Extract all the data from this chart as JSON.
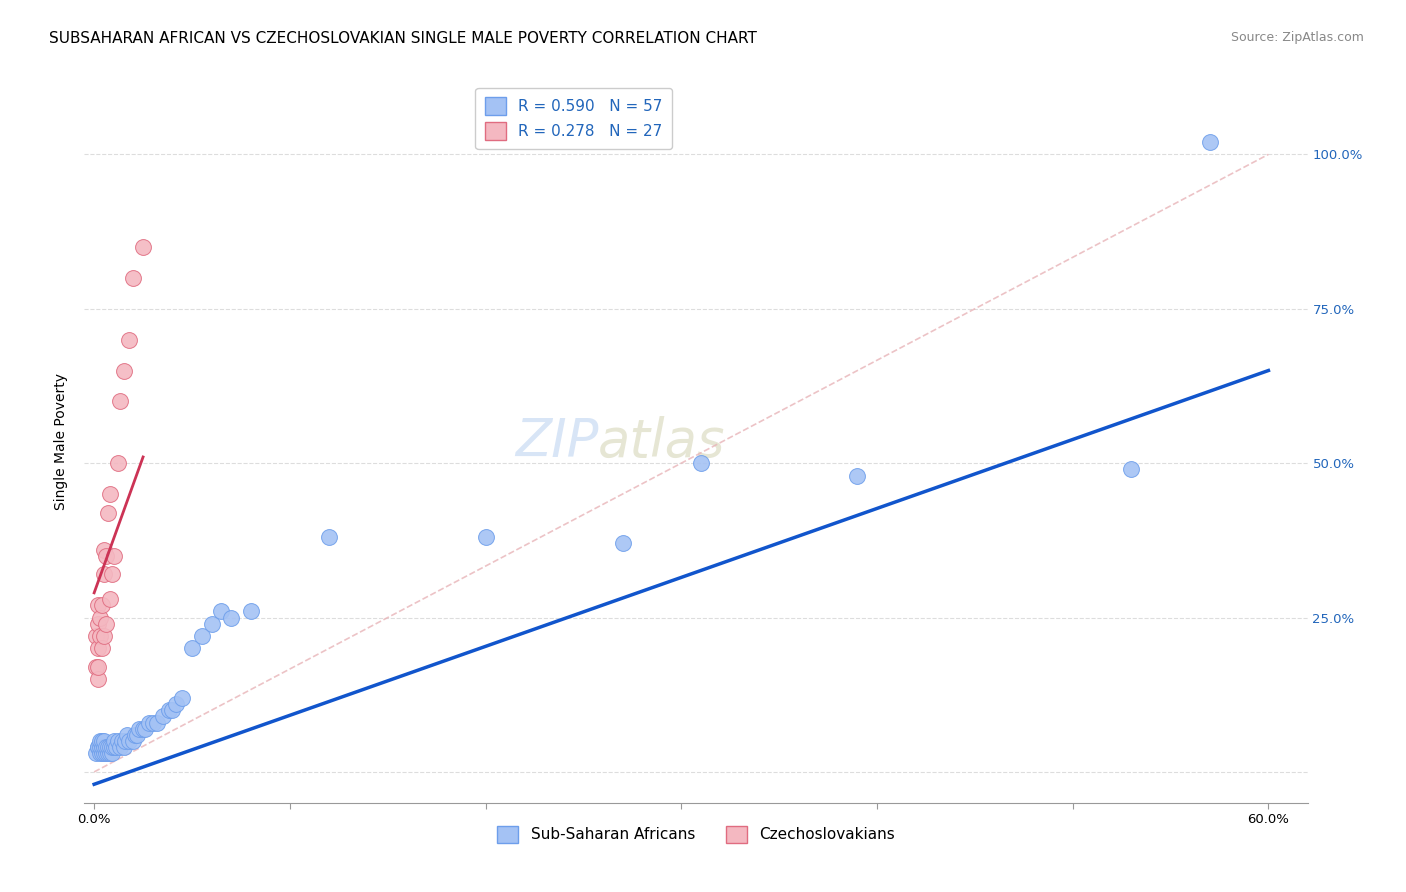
{
  "title": "SUBSAHARAN AFRICAN VS CZECHOSLOVAKIAN SINGLE MALE POVERTY CORRELATION CHART",
  "source": "Source: ZipAtlas.com",
  "ylabel": "Single Male Poverty",
  "xlim": [
    -0.005,
    0.62
  ],
  "ylim": [
    -0.05,
    1.12
  ],
  "xticks": [
    0.0,
    0.1,
    0.2,
    0.3,
    0.4,
    0.5,
    0.6
  ],
  "xticklabels": [
    "0.0%",
    "",
    "",
    "",
    "",
    "",
    "60.0%"
  ],
  "ytick_positions": [
    0.0,
    0.25,
    0.5,
    0.75,
    1.0
  ],
  "ytick_labels_right": [
    "",
    "25.0%",
    "50.0%",
    "75.0%",
    "100.0%"
  ],
  "blue_color": "#a4c2f4",
  "pink_color": "#f4b8c1",
  "blue_edge": "#6d9eeb",
  "pink_edge": "#e06c80",
  "blue_line_color": "#1155cc",
  "pink_line_color": "#cc3355",
  "diag_line_color": "#cccccc",
  "legend_r1": "R = 0.590   N = 57",
  "legend_r2": "R = 0.278   N = 27",
  "legend_label1": "Sub-Saharan Africans",
  "legend_label2": "Czechoslovakians",
  "watermark_zip": "ZIP",
  "watermark_atlas": "atlas",
  "blue_scatter_x": [
    0.001,
    0.002,
    0.002,
    0.003,
    0.003,
    0.003,
    0.004,
    0.004,
    0.004,
    0.005,
    0.005,
    0.005,
    0.006,
    0.006,
    0.007,
    0.007,
    0.008,
    0.008,
    0.009,
    0.009,
    0.01,
    0.01,
    0.011,
    0.012,
    0.013,
    0.014,
    0.015,
    0.016,
    0.017,
    0.018,
    0.02,
    0.021,
    0.022,
    0.023,
    0.025,
    0.026,
    0.028,
    0.03,
    0.032,
    0.035,
    0.038,
    0.04,
    0.042,
    0.045,
    0.05,
    0.055,
    0.06,
    0.065,
    0.07,
    0.08,
    0.12,
    0.2,
    0.27,
    0.31,
    0.39,
    0.53,
    0.57
  ],
  "blue_scatter_y": [
    0.03,
    0.04,
    0.04,
    0.03,
    0.04,
    0.05,
    0.03,
    0.04,
    0.05,
    0.03,
    0.04,
    0.05,
    0.03,
    0.04,
    0.03,
    0.04,
    0.03,
    0.04,
    0.03,
    0.04,
    0.04,
    0.05,
    0.04,
    0.05,
    0.04,
    0.05,
    0.04,
    0.05,
    0.06,
    0.05,
    0.05,
    0.06,
    0.06,
    0.07,
    0.07,
    0.07,
    0.08,
    0.08,
    0.08,
    0.09,
    0.1,
    0.1,
    0.11,
    0.12,
    0.2,
    0.22,
    0.24,
    0.26,
    0.25,
    0.26,
    0.38,
    0.38,
    0.37,
    0.5,
    0.48,
    0.49,
    1.02
  ],
  "pink_scatter_x": [
    0.001,
    0.001,
    0.002,
    0.002,
    0.002,
    0.002,
    0.002,
    0.003,
    0.003,
    0.004,
    0.004,
    0.005,
    0.005,
    0.005,
    0.006,
    0.006,
    0.007,
    0.008,
    0.008,
    0.009,
    0.01,
    0.012,
    0.013,
    0.015,
    0.018,
    0.02,
    0.025
  ],
  "pink_scatter_y": [
    0.17,
    0.22,
    0.15,
    0.17,
    0.2,
    0.24,
    0.27,
    0.22,
    0.25,
    0.2,
    0.27,
    0.22,
    0.32,
    0.36,
    0.24,
    0.35,
    0.42,
    0.28,
    0.45,
    0.32,
    0.35,
    0.5,
    0.6,
    0.65,
    0.7,
    0.8,
    0.85
  ],
  "blue_line_x": [
    0.0,
    0.6
  ],
  "blue_line_y": [
    -0.02,
    0.65
  ],
  "pink_line_x": [
    0.0,
    0.025
  ],
  "pink_line_y": [
    0.29,
    0.51
  ],
  "diag_line_x": [
    0.0,
    0.6
  ],
  "diag_line_y": [
    0.0,
    1.0
  ],
  "title_fontsize": 11,
  "source_fontsize": 9,
  "axis_label_fontsize": 10,
  "tick_fontsize": 9.5,
  "legend_fontsize": 11,
  "watermark_fontsize": 38,
  "background_color": "#ffffff",
  "grid_color": "#dddddd"
}
